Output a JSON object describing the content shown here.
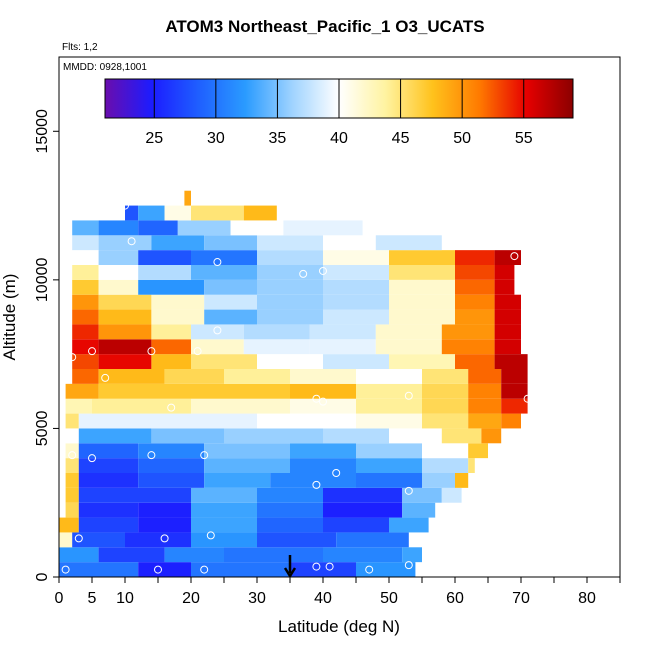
{
  "title": "ATOM3 Northeast_Pacific_1 O3_UCATS",
  "flights_note": "Flts: 1,2",
  "date_note": "MMDD: 0928,1001",
  "colors": {
    "scale": [
      "#6a0dad",
      "#1c1cff",
      "#1f5fff",
      "#2a9bff",
      "#9fd3ff",
      "#ffffff",
      "#fff3a0",
      "#ffc21c",
      "#ff7a00",
      "#e60000",
      "#8b0000"
    ]
  },
  "chart_data": {
    "type": "heatmap",
    "title": "ATOM3 Northeast_Pacific_1 O3_UCATS",
    "xlabel": "Latitude (deg N)",
    "ylabel": "Altitude (m)",
    "xlim": [
      0,
      85
    ],
    "ylim": [
      0,
      17500
    ],
    "x_ticks": [
      0,
      5,
      10,
      20,
      30,
      40,
      50,
      60,
      70,
      80
    ],
    "x_minor_ticks": [
      15,
      25,
      35,
      45,
      55,
      65,
      75,
      85
    ],
    "y_ticks": [
      0,
      5000,
      10000,
      15000
    ],
    "colorbar": {
      "min": 21,
      "max": 59,
      "ticks": [
        25,
        30,
        35,
        40,
        45,
        50,
        55
      ]
    },
    "altitude_layers": [
      {
        "alt": 250,
        "segments": [
          [
            0,
            12,
            30
          ],
          [
            12,
            20,
            25
          ],
          [
            20,
            35,
            30
          ],
          [
            35,
            45,
            27
          ],
          [
            45,
            54,
            32
          ]
        ]
      },
      {
        "alt": 750,
        "segments": [
          [
            0,
            6,
            32
          ],
          [
            6,
            16,
            27
          ],
          [
            16,
            25,
            31
          ],
          [
            25,
            40,
            30
          ],
          [
            40,
            52,
            31
          ],
          [
            52,
            55,
            33
          ]
        ]
      },
      {
        "alt": 1250,
        "segments": [
          [
            0,
            2,
            42
          ],
          [
            2,
            10,
            28
          ],
          [
            10,
            20,
            26
          ],
          [
            20,
            30,
            32
          ],
          [
            30,
            42,
            28
          ],
          [
            42,
            53,
            30
          ]
        ]
      },
      {
        "alt": 1750,
        "segments": [
          [
            0,
            3,
            48
          ],
          [
            3,
            12,
            27
          ],
          [
            12,
            20,
            25
          ],
          [
            20,
            30,
            33
          ],
          [
            30,
            40,
            29
          ],
          [
            40,
            50,
            27
          ],
          [
            50,
            56,
            33
          ]
        ]
      },
      {
        "alt": 2250,
        "segments": [
          [
            1,
            3,
            46
          ],
          [
            3,
            12,
            26
          ],
          [
            12,
            20,
            25
          ],
          [
            20,
            30,
            33
          ],
          [
            30,
            40,
            30
          ],
          [
            40,
            52,
            25
          ],
          [
            52,
            57,
            34
          ]
        ]
      },
      {
        "alt": 2750,
        "segments": [
          [
            1,
            3,
            47
          ],
          [
            3,
            10,
            27
          ],
          [
            10,
            20,
            27
          ],
          [
            20,
            30,
            34
          ],
          [
            30,
            40,
            31
          ],
          [
            40,
            52,
            26
          ],
          [
            52,
            58,
            35
          ],
          [
            58,
            61,
            38
          ]
        ]
      },
      {
        "alt": 3250,
        "segments": [
          [
            1,
            3,
            47
          ],
          [
            3,
            12,
            26
          ],
          [
            12,
            22,
            28
          ],
          [
            22,
            32,
            33
          ],
          [
            32,
            45,
            31
          ],
          [
            45,
            55,
            30
          ],
          [
            55,
            60,
            36
          ],
          [
            60,
            62,
            48
          ]
        ]
      },
      {
        "alt": 3750,
        "segments": [
          [
            1,
            3,
            45
          ],
          [
            3,
            12,
            27
          ],
          [
            12,
            22,
            29
          ],
          [
            22,
            35,
            34
          ],
          [
            35,
            45,
            31
          ],
          [
            45,
            55,
            33
          ],
          [
            55,
            62,
            37
          ],
          [
            62,
            63,
            45
          ]
        ]
      },
      {
        "alt": 4250,
        "segments": [
          [
            1,
            3,
            42
          ],
          [
            3,
            12,
            29
          ],
          [
            12,
            22,
            31
          ],
          [
            22,
            35,
            35
          ],
          [
            35,
            45,
            33
          ],
          [
            45,
            55,
            36
          ],
          [
            55,
            62,
            40
          ],
          [
            62,
            65,
            47
          ]
        ]
      },
      {
        "alt": 4750,
        "segments": [
          [
            1,
            3,
            40
          ],
          [
            3,
            14,
            33
          ],
          [
            14,
            25,
            35
          ],
          [
            25,
            40,
            36
          ],
          [
            40,
            50,
            37
          ],
          [
            50,
            58,
            40
          ],
          [
            58,
            64,
            45
          ],
          [
            64,
            67,
            50
          ]
        ]
      },
      {
        "alt": 5250,
        "segments": [
          [
            1,
            3,
            45
          ],
          [
            3,
            15,
            39
          ],
          [
            15,
            30,
            39
          ],
          [
            30,
            45,
            40
          ],
          [
            45,
            55,
            41
          ],
          [
            55,
            62,
            45
          ],
          [
            62,
            67,
            49
          ],
          [
            67,
            70,
            51
          ]
        ]
      },
      {
        "alt": 5750,
        "segments": [
          [
            1,
            5,
            43
          ],
          [
            5,
            20,
            44
          ],
          [
            20,
            35,
            42
          ],
          [
            35,
            45,
            41
          ],
          [
            45,
            55,
            44
          ],
          [
            55,
            62,
            46
          ],
          [
            62,
            67,
            51
          ],
          [
            67,
            71,
            54
          ]
        ]
      },
      {
        "alt": 6250,
        "segments": [
          [
            1,
            6,
            49
          ],
          [
            6,
            20,
            47
          ],
          [
            20,
            35,
            47
          ],
          [
            35,
            45,
            48
          ],
          [
            45,
            55,
            44
          ],
          [
            55,
            62,
            46
          ],
          [
            62,
            67,
            51
          ],
          [
            67,
            71,
            57
          ]
        ]
      },
      {
        "alt": 6750,
        "segments": [
          [
            2,
            6,
            52
          ],
          [
            6,
            16,
            48
          ],
          [
            16,
            25,
            46
          ],
          [
            25,
            35,
            44
          ],
          [
            35,
            45,
            42
          ],
          [
            45,
            55,
            40
          ],
          [
            55,
            62,
            45
          ],
          [
            62,
            67,
            52
          ],
          [
            67,
            71,
            57
          ]
        ]
      },
      {
        "alt": 7250,
        "segments": [
          [
            2,
            6,
            53
          ],
          [
            6,
            14,
            55
          ],
          [
            14,
            20,
            48
          ],
          [
            20,
            30,
            45
          ],
          [
            30,
            40,
            40
          ],
          [
            40,
            50,
            38
          ],
          [
            50,
            60,
            43
          ],
          [
            60,
            66,
            52
          ],
          [
            66,
            71,
            57
          ]
        ]
      },
      {
        "alt": 7750,
        "segments": [
          [
            2,
            6,
            55
          ],
          [
            6,
            14,
            57
          ],
          [
            14,
            20,
            52
          ],
          [
            20,
            28,
            42
          ],
          [
            28,
            38,
            39
          ],
          [
            38,
            48,
            39
          ],
          [
            48,
            58,
            42
          ],
          [
            58,
            66,
            51
          ],
          [
            66,
            70,
            56
          ]
        ]
      },
      {
        "alt": 8250,
        "segments": [
          [
            2,
            6,
            54
          ],
          [
            6,
            14,
            50
          ],
          [
            14,
            20,
            44
          ],
          [
            20,
            28,
            38
          ],
          [
            28,
            38,
            37
          ],
          [
            38,
            48,
            38
          ],
          [
            48,
            58,
            42
          ],
          [
            58,
            66,
            50
          ],
          [
            66,
            70,
            56
          ]
        ]
      },
      {
        "alt": 8750,
        "segments": [
          [
            2,
            6,
            52
          ],
          [
            6,
            14,
            48
          ],
          [
            14,
            22,
            42
          ],
          [
            22,
            30,
            34
          ],
          [
            30,
            40,
            36
          ],
          [
            40,
            50,
            38
          ],
          [
            50,
            60,
            42
          ],
          [
            60,
            66,
            50
          ],
          [
            66,
            70,
            56
          ]
        ]
      },
      {
        "alt": 9250,
        "segments": [
          [
            2,
            6,
            50
          ],
          [
            6,
            14,
            46
          ],
          [
            14,
            22,
            42
          ],
          [
            22,
            30,
            38
          ],
          [
            30,
            40,
            36
          ],
          [
            40,
            50,
            37
          ],
          [
            50,
            60,
            42
          ],
          [
            60,
            66,
            51
          ],
          [
            66,
            70,
            56
          ]
        ]
      },
      {
        "alt": 9750,
        "segments": [
          [
            2,
            6,
            47
          ],
          [
            6,
            12,
            42
          ],
          [
            12,
            22,
            32
          ],
          [
            22,
            30,
            35
          ],
          [
            30,
            40,
            36
          ],
          [
            40,
            50,
            37
          ],
          [
            50,
            60,
            42
          ],
          [
            60,
            66,
            52
          ],
          [
            66,
            69,
            56
          ]
        ]
      },
      {
        "alt": 10250,
        "segments": [
          [
            2,
            6,
            44
          ],
          [
            6,
            12,
            40
          ],
          [
            12,
            20,
            37
          ],
          [
            20,
            30,
            34
          ],
          [
            30,
            40,
            36
          ],
          [
            40,
            50,
            38
          ],
          [
            50,
            60,
            45
          ],
          [
            60,
            66,
            53
          ],
          [
            66,
            69,
            56
          ]
        ]
      },
      {
        "alt": 10750,
        "segments": [
          [
            2,
            6,
            40
          ],
          [
            6,
            12,
            36
          ],
          [
            12,
            20,
            28
          ],
          [
            20,
            30,
            30
          ],
          [
            30,
            40,
            37
          ],
          [
            40,
            50,
            41
          ],
          [
            50,
            60,
            47
          ],
          [
            60,
            66,
            54
          ],
          [
            66,
            70,
            57
          ]
        ]
      },
      {
        "alt": 11250,
        "segments": [
          [
            2,
            6,
            38
          ],
          [
            6,
            14,
            36
          ],
          [
            14,
            22,
            33
          ],
          [
            22,
            30,
            35
          ],
          [
            30,
            40,
            38
          ],
          [
            40,
            48,
            40
          ],
          [
            48,
            58,
            38
          ]
        ]
      },
      {
        "alt": 11750,
        "segments": [
          [
            2,
            6,
            34
          ],
          [
            6,
            12,
            31
          ],
          [
            12,
            18,
            29
          ],
          [
            18,
            26,
            36
          ],
          [
            26,
            34,
            40
          ],
          [
            34,
            46,
            39
          ]
        ]
      },
      {
        "alt": 12250,
        "segments": [
          [
            10,
            12,
            28
          ],
          [
            12,
            16,
            33
          ],
          [
            16,
            20,
            41
          ],
          [
            20,
            28,
            45
          ],
          [
            28,
            33,
            48
          ]
        ]
      },
      {
        "alt": 12750,
        "segments": [
          [
            19,
            20,
            49
          ]
        ]
      }
    ],
    "sample_points": [
      [
        1,
        250
      ],
      [
        15,
        250
      ],
      [
        22,
        250
      ],
      [
        39,
        350
      ],
      [
        41,
        350
      ],
      [
        47,
        250
      ],
      [
        53,
        400
      ],
      [
        3,
        1300
      ],
      [
        16,
        1300
      ],
      [
        23,
        1400
      ],
      [
        39,
        3100
      ],
      [
        42,
        3500
      ],
      [
        53,
        2900
      ],
      [
        2,
        4100
      ],
      [
        5,
        4000
      ],
      [
        14,
        4100
      ],
      [
        22,
        4100
      ],
      [
        17,
        5700
      ],
      [
        39,
        6000
      ],
      [
        40,
        5900
      ],
      [
        53,
        6100
      ],
      [
        71,
        6000
      ],
      [
        2,
        7400
      ],
      [
        5,
        7600
      ],
      [
        14,
        7600
      ],
      [
        21,
        7600
      ],
      [
        24,
        8300
      ],
      [
        7,
        6700
      ],
      [
        24,
        10600
      ],
      [
        37,
        10200
      ],
      [
        40,
        10300
      ],
      [
        11,
        11300
      ],
      [
        59,
        11200
      ],
      [
        69,
        10800
      ],
      [
        71,
        10900
      ],
      [
        10,
        12500
      ]
    ],
    "marker": {
      "x": 35,
      "type": "arrow"
    }
  }
}
